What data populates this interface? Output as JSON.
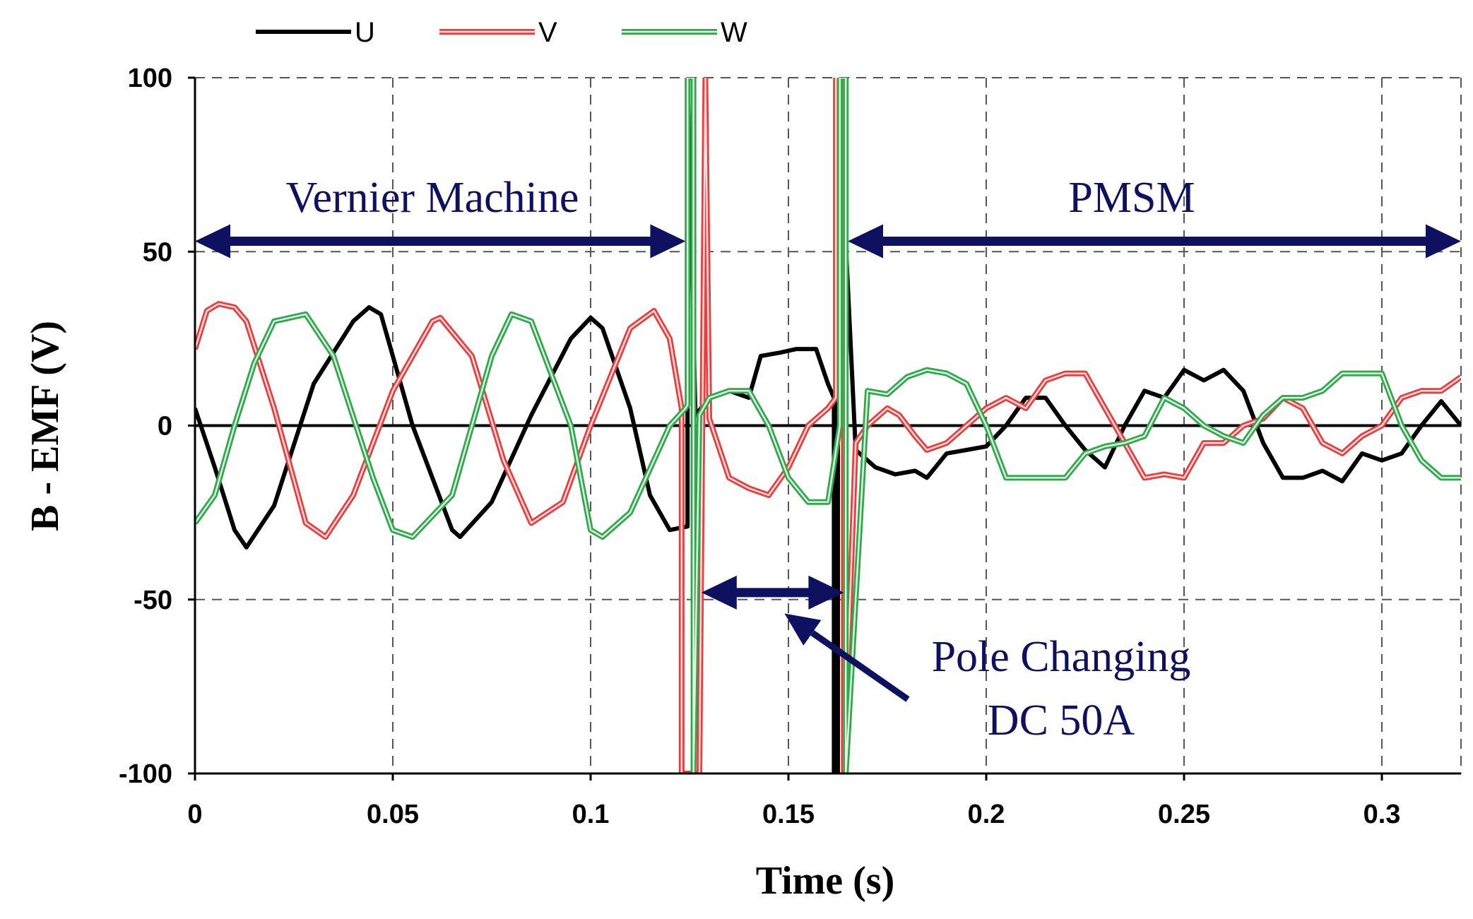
{
  "chart_data": {
    "type": "line",
    "title": "",
    "xlabel": "Time (s)",
    "ylabel": "B - EMF (V)",
    "xlim": [
      0,
      0.32
    ],
    "ylim": [
      -100,
      100
    ],
    "xticks": [
      0,
      0.05,
      0.1,
      0.15,
      0.2,
      0.25,
      0.3
    ],
    "xtick_labels": [
      "0",
      "0.05",
      "0.1",
      "0.15",
      "0.2",
      "0.25",
      "0.3"
    ],
    "yticks": [
      100,
      50,
      0,
      -50,
      -100
    ],
    "ytick_labels": [
      "100",
      "50",
      "0",
      "-50",
      "-100"
    ],
    "grid": true,
    "legend_position": "top-left",
    "series": [
      {
        "name": "U",
        "color": "#000000",
        "x": [
          0,
          0.005,
          0.01,
          0.013,
          0.02,
          0.03,
          0.04,
          0.044,
          0.047,
          0.055,
          0.065,
          0.067,
          0.075,
          0.085,
          0.095,
          0.1,
          0.103,
          0.11,
          0.115,
          0.12,
          0.1245,
          0.1245,
          0.1265,
          0.13,
          0.135,
          0.14,
          0.143,
          0.148,
          0.152,
          0.157,
          0.16,
          0.1615,
          0.1615,
          0.1625,
          0.1625,
          0.167,
          0.172,
          0.177,
          0.182,
          0.185,
          0.19,
          0.195,
          0.2,
          0.205,
          0.21,
          0.215,
          0.22,
          0.225,
          0.23,
          0.235,
          0.24,
          0.245,
          0.25,
          0.255,
          0.26,
          0.265,
          0.27,
          0.275,
          0.28,
          0.285,
          0.29,
          0.295,
          0.3,
          0.305,
          0.31,
          0.315,
          0.32
        ],
        "values": [
          5,
          -12,
          -30,
          -35,
          -23,
          12,
          30,
          34,
          32,
          0,
          -30,
          -32,
          -22,
          3,
          25,
          31,
          28,
          5,
          -20,
          -30,
          -29,
          100,
          3,
          8,
          10,
          8,
          20,
          21,
          22,
          22,
          12,
          8,
          -100,
          -100,
          100,
          -7,
          -12,
          -14,
          -13,
          -15,
          -8,
          -7,
          -6,
          0,
          8,
          8,
          0,
          -7,
          -12,
          0,
          10,
          8,
          16,
          13,
          16,
          10,
          -5,
          -15,
          -15,
          -13,
          -16,
          -8,
          -10,
          -8,
          0,
          7,
          0
        ]
      },
      {
        "name": "V",
        "color": "#ee3a3a",
        "x": [
          0,
          0.003,
          0.006,
          0.01,
          0.013,
          0.02,
          0.028,
          0.033,
          0.04,
          0.05,
          0.06,
          0.062,
          0.07,
          0.078,
          0.085,
          0.093,
          0.1,
          0.11,
          0.116,
          0.12,
          0.123,
          0.123,
          0.1275,
          0.129,
          0.13,
          0.135,
          0.14,
          0.145,
          0.15,
          0.155,
          0.16,
          0.162,
          0.162,
          0.164,
          0.164,
          0.167,
          0.17,
          0.175,
          0.178,
          0.182,
          0.185,
          0.19,
          0.195,
          0.2,
          0.205,
          0.21,
          0.215,
          0.22,
          0.225,
          0.23,
          0.235,
          0.24,
          0.245,
          0.25,
          0.255,
          0.26,
          0.265,
          0.27,
          0.275,
          0.28,
          0.285,
          0.29,
          0.295,
          0.3,
          0.305,
          0.31,
          0.315,
          0.32
        ],
        "values": [
          22,
          33,
          35,
          34,
          30,
          5,
          -28,
          -32,
          -20,
          10,
          30,
          31,
          20,
          -10,
          -28,
          -22,
          0,
          28,
          33,
          25,
          5,
          -100,
          -100,
          100,
          2,
          -15,
          -18,
          -20,
          -12,
          0,
          5,
          8,
          100,
          100,
          -100,
          -5,
          0,
          5,
          3,
          -3,
          -7,
          -5,
          0,
          5,
          8,
          5,
          13,
          15,
          15,
          5,
          -5,
          -15,
          -14,
          -15,
          -5,
          -5,
          0,
          2,
          8,
          5,
          -5,
          -8,
          -3,
          0,
          8,
          10,
          10,
          14
        ]
      },
      {
        "name": "W",
        "color": "#2ea84a",
        "x": [
          0,
          0.005,
          0.01,
          0.015,
          0.02,
          0.028,
          0.035,
          0.045,
          0.05,
          0.055,
          0.065,
          0.075,
          0.08,
          0.085,
          0.095,
          0.1,
          0.103,
          0.11,
          0.12,
          0.124,
          0.1245,
          0.1245,
          0.126,
          0.126,
          0.1275,
          0.13,
          0.135,
          0.14,
          0.145,
          0.15,
          0.155,
          0.16,
          0.163,
          0.163,
          0.1645,
          0.1645,
          0.17,
          0.175,
          0.18,
          0.185,
          0.19,
          0.195,
          0.2,
          0.205,
          0.21,
          0.215,
          0.22,
          0.225,
          0.23,
          0.235,
          0.24,
          0.245,
          0.25,
          0.255,
          0.26,
          0.265,
          0.27,
          0.275,
          0.28,
          0.285,
          0.29,
          0.295,
          0.3,
          0.305,
          0.31,
          0.315,
          0.32
        ],
        "values": [
          -28,
          -20,
          0,
          18,
          30,
          32,
          20,
          -15,
          -30,
          -32,
          -20,
          20,
          32,
          30,
          0,
          -30,
          -32,
          -25,
          0,
          5,
          6,
          100,
          100,
          -100,
          3,
          8,
          10,
          10,
          0,
          -15,
          -22,
          -22,
          0,
          100,
          100,
          -100,
          10,
          9,
          14,
          16,
          15,
          12,
          0,
          -15,
          -15,
          -15,
          -15,
          -8,
          -6,
          -5,
          -3,
          8,
          5,
          0,
          -3,
          -5,
          3,
          8,
          8,
          10,
          15,
          15,
          15,
          0,
          -10,
          -15,
          -15
        ]
      }
    ],
    "annotations": [
      {
        "text": "Vernier Machine",
        "type": "double-arrow",
        "x_from": 0,
        "x_to": 0.124,
        "y": 53
      },
      {
        "text": "PMSM",
        "type": "double-arrow",
        "x_from": 0.165,
        "x_to": 0.32,
        "y": 53
      },
      {
        "text_lines": [
          "Pole Changing",
          "DC 50A"
        ],
        "type": "double-arrow",
        "x_from": 0.128,
        "x_to": 0.164,
        "y": -48,
        "pointer_to": [
          0.149,
          -54
        ]
      }
    ]
  }
}
